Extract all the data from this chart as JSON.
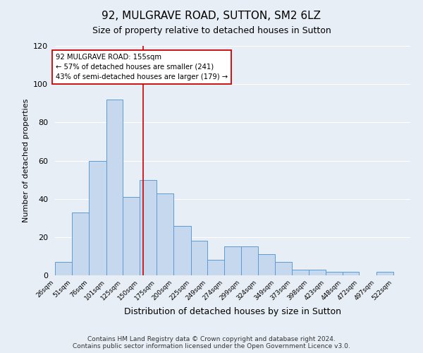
{
  "title": "92, MULGRAVE ROAD, SUTTON, SM2 6LZ",
  "subtitle": "Size of property relative to detached houses in Sutton",
  "xlabel": "Distribution of detached houses by size in Sutton",
  "ylabel": "Number of detached properties",
  "bin_labels": [
    "26sqm",
    "51sqm",
    "76sqm",
    "101sqm",
    "125sqm",
    "150sqm",
    "175sqm",
    "200sqm",
    "225sqm",
    "249sqm",
    "274sqm",
    "299sqm",
    "324sqm",
    "349sqm",
    "373sqm",
    "398sqm",
    "423sqm",
    "448sqm",
    "472sqm",
    "497sqm",
    "522sqm"
  ],
  "bin_edges": [
    26,
    51,
    76,
    101,
    125,
    150,
    175,
    200,
    225,
    249,
    274,
    299,
    324,
    349,
    373,
    398,
    423,
    448,
    472,
    497,
    522,
    547
  ],
  "bar_heights": [
    7,
    33,
    60,
    92,
    41,
    50,
    43,
    26,
    18,
    8,
    15,
    15,
    11,
    7,
    3,
    3,
    2,
    2,
    0,
    2,
    0
  ],
  "bar_color": "#c5d8ed",
  "bar_edge_color": "#5b9bd5",
  "reference_line_x": 155,
  "reference_line_color": "#cc0000",
  "annotation_line1": "92 MULGRAVE ROAD: 155sqm",
  "annotation_line2": "← 57% of detached houses are smaller (241)",
  "annotation_line3": "43% of semi-detached houses are larger (179) →",
  "annotation_box_color": "white",
  "annotation_box_edge_color": "#cc0000",
  "ylim": [
    0,
    120
  ],
  "yticks": [
    0,
    20,
    40,
    60,
    80,
    100,
    120
  ],
  "background_color": "#e8eef5",
  "plot_bg_color": "#e8eef5",
  "footer_line1": "Contains HM Land Registry data © Crown copyright and database right 2024.",
  "footer_line2": "Contains public sector information licensed under the Open Government Licence v3.0."
}
